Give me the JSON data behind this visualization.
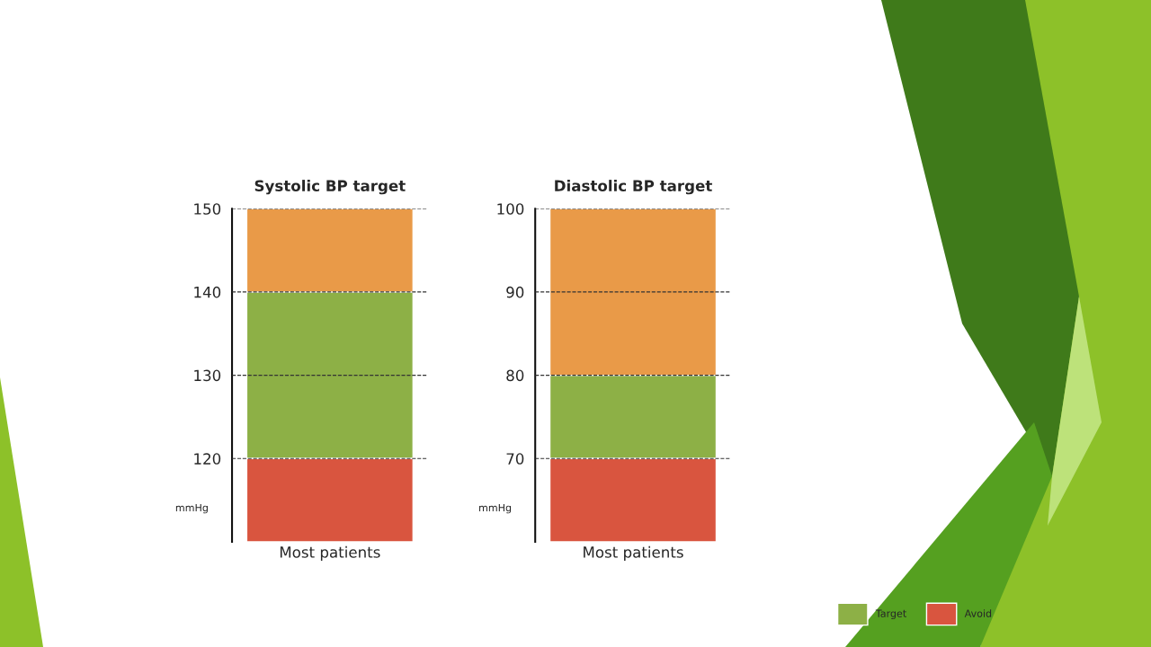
{
  "chart_data": [
    {
      "type": "bar",
      "title": "Systolic BP target",
      "ylabel": "mmHg",
      "categories": [
        "Most patients"
      ],
      "series": [
        {
          "name": "Target",
          "color": "#8db046",
          "values": [
            20
          ],
          "base": [
            120
          ]
        },
        {
          "name": "Avoid",
          "color": "#d9553f",
          "values": [
            10
          ],
          "base": [
            110
          ]
        },
        {
          "color": "#e99a48",
          "values": [
            10
          ],
          "base": [
            140
          ]
        }
      ],
      "ylim": [
        110,
        150
      ],
      "yticks": [
        120,
        130,
        140,
        150
      ],
      "grid": "y",
      "legend": "bottom right"
    },
    {
      "type": "bar",
      "title": "Diastolic BP target",
      "ylabel": "mmHg",
      "categories": [
        "Most patients"
      ],
      "series": [
        {
          "color": "#8db046",
          "values": [
            10
          ],
          "base": [
            70
          ]
        },
        {
          "color": "#d9553f",
          "values": [
            10
          ],
          "base": [
            60
          ]
        },
        {
          "color": "#e99a48",
          "values": [
            20
          ],
          "base": [
            80
          ]
        }
      ],
      "ylim": [
        60,
        100
      ],
      "yticks": [
        70,
        80,
        90,
        100
      ],
      "grid": "y"
    }
  ]
}
